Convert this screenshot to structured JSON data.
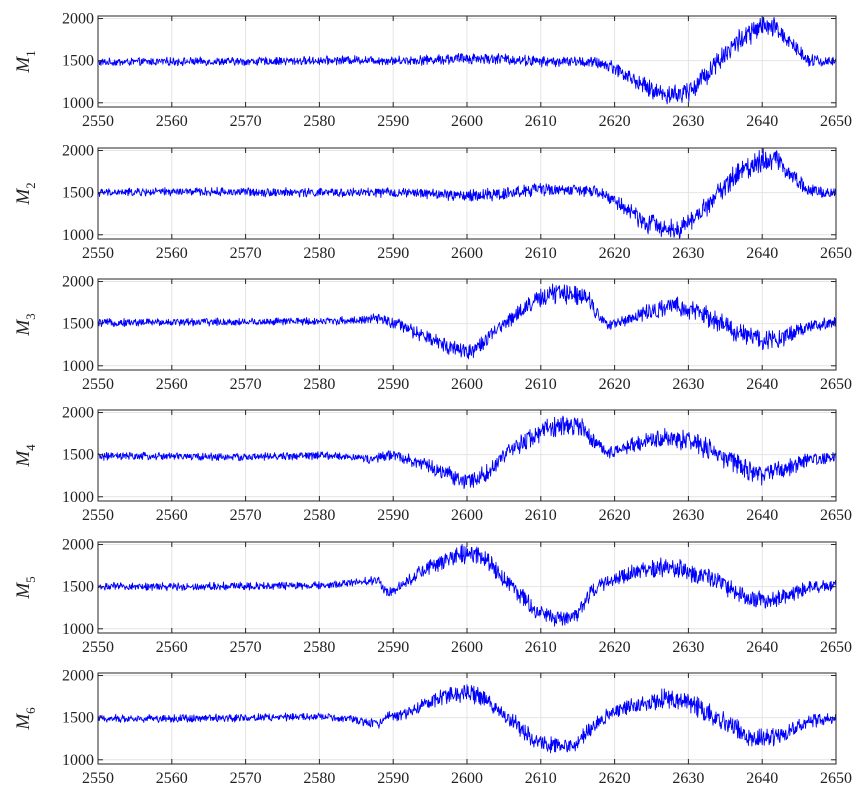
{
  "chart_data": [
    {
      "type": "line",
      "ylabel": "M",
      "ylabel_subscript": "1",
      "xlim": [
        2550,
        2650
      ],
      "ylim": [
        950,
        2030
      ],
      "xticks": [
        "2550",
        "2560",
        "2570",
        "2580",
        "2590",
        "2600",
        "2610",
        "2620",
        "2630",
        "2640",
        "2650"
      ],
      "yticks": [
        "1000",
        "1500",
        "2000"
      ],
      "grid": true,
      "series": [
        {
          "color": "#0000ff",
          "noise_amplitude": [
            [
              2550,
              40
            ],
            [
              2590,
              45
            ],
            [
              2600,
              60
            ],
            [
              2615,
              50
            ],
            [
              2620,
              70
            ],
            [
              2630,
              110
            ],
            [
              2640,
              120
            ],
            [
              2650,
              40
            ]
          ],
          "x": [
            2550,
            2560,
            2570,
            2580,
            2585,
            2590,
            2595,
            2600,
            2605,
            2610,
            2615,
            2618,
            2620,
            2622,
            2625,
            2627,
            2629,
            2631,
            2634,
            2637,
            2640,
            2642,
            2644,
            2646,
            2648,
            2650
          ],
          "y": [
            1480,
            1490,
            1490,
            1500,
            1510,
            1500,
            1510,
            1530,
            1520,
            1490,
            1490,
            1470,
            1420,
            1300,
            1150,
            1100,
            1100,
            1200,
            1500,
            1750,
            1900,
            1880,
            1700,
            1530,
            1490,
            1490
          ]
        }
      ]
    },
    {
      "type": "line",
      "ylabel": "M",
      "ylabel_subscript": "2",
      "xlim": [
        2550,
        2650
      ],
      "ylim": [
        950,
        2030
      ],
      "xticks": [
        "2550",
        "2560",
        "2570",
        "2580",
        "2590",
        "2600",
        "2610",
        "2620",
        "2630",
        "2640",
        "2650"
      ],
      "yticks": [
        "1000",
        "1500",
        "2000"
      ],
      "grid": true,
      "series": [
        {
          "color": "#0000ff",
          "noise_amplitude": [
            [
              2550,
              40
            ],
            [
              2595,
              50
            ],
            [
              2600,
              65
            ],
            [
              2610,
              70
            ],
            [
              2615,
              50
            ],
            [
              2625,
              100
            ],
            [
              2630,
              100
            ],
            [
              2640,
              120
            ],
            [
              2650,
              40
            ]
          ],
          "x": [
            2550,
            2560,
            2570,
            2580,
            2590,
            2595,
            2600,
            2605,
            2610,
            2615,
            2618,
            2621,
            2624,
            2627,
            2629,
            2631,
            2634,
            2637,
            2640,
            2642,
            2644,
            2646,
            2648,
            2650
          ],
          "y": [
            1500,
            1510,
            1510,
            1500,
            1500,
            1490,
            1460,
            1490,
            1540,
            1530,
            1500,
            1350,
            1150,
            1080,
            1080,
            1200,
            1500,
            1750,
            1900,
            1900,
            1700,
            1550,
            1510,
            1500
          ]
        }
      ]
    },
    {
      "type": "line",
      "ylabel": "M",
      "ylabel_subscript": "3",
      "xlim": [
        2550,
        2650
      ],
      "ylim": [
        950,
        2030
      ],
      "xticks": [
        "2550",
        "2560",
        "2570",
        "2580",
        "2590",
        "2600",
        "2610",
        "2620",
        "2630",
        "2640",
        "2650"
      ],
      "yticks": [
        "1000",
        "1500",
        "2000"
      ],
      "grid": true,
      "series": [
        {
          "color": "#0000ff",
          "noise_amplitude": [
            [
              2550,
              40
            ],
            [
              2585,
              40
            ],
            [
              2593,
              70
            ],
            [
              2600,
              90
            ],
            [
              2605,
              70
            ],
            [
              2612,
              110
            ],
            [
              2617,
              100
            ],
            [
              2618,
              50
            ],
            [
              2628,
              100
            ],
            [
              2640,
              110
            ],
            [
              2650,
              50
            ]
          ],
          "x": [
            2550,
            2560,
            2570,
            2580,
            2585,
            2588,
            2591,
            2594,
            2597,
            2600,
            2602,
            2605,
            2608,
            2610,
            2612,
            2616,
            2617.5,
            2619,
            2622,
            2625,
            2628,
            2631,
            2634,
            2637,
            2640,
            2643,
            2646,
            2650
          ],
          "y": [
            1510,
            1520,
            1520,
            1530,
            1540,
            1560,
            1480,
            1350,
            1250,
            1170,
            1250,
            1500,
            1700,
            1800,
            1860,
            1850,
            1650,
            1470,
            1560,
            1650,
            1700,
            1650,
            1520,
            1380,
            1300,
            1350,
            1460,
            1520
          ]
        }
      ]
    },
    {
      "type": "line",
      "ylabel": "M",
      "ylabel_subscript": "4",
      "xlim": [
        2550,
        2650
      ],
      "ylim": [
        950,
        2030
      ],
      "xticks": [
        "2550",
        "2560",
        "2570",
        "2580",
        "2590",
        "2600",
        "2610",
        "2620",
        "2630",
        "2640",
        "2650"
      ],
      "yticks": [
        "1000",
        "1500",
        "2000"
      ],
      "grid": true,
      "series": [
        {
          "color": "#0000ff",
          "noise_amplitude": [
            [
              2550,
              40
            ],
            [
              2585,
              40
            ],
            [
              2591,
              60
            ],
            [
              2600,
              90
            ],
            [
              2612,
              110
            ],
            [
              2617,
              100
            ],
            [
              2618,
              50
            ],
            [
              2627,
              100
            ],
            [
              2640,
              110
            ],
            [
              2650,
              50
            ]
          ],
          "x": [
            2550,
            2560,
            2570,
            2580,
            2585,
            2587,
            2590,
            2592,
            2595,
            2598,
            2600,
            2603,
            2606,
            2609,
            2612,
            2615,
            2617,
            2619,
            2622,
            2625,
            2628,
            2631,
            2634,
            2637,
            2640,
            2643,
            2646,
            2650
          ],
          "y": [
            1480,
            1480,
            1470,
            1490,
            1470,
            1440,
            1500,
            1450,
            1350,
            1250,
            1170,
            1300,
            1550,
            1730,
            1840,
            1860,
            1680,
            1520,
            1600,
            1680,
            1700,
            1640,
            1500,
            1360,
            1270,
            1320,
            1430,
            1480
          ]
        }
      ]
    },
    {
      "type": "line",
      "ylabel": "M",
      "ylabel_subscript": "5",
      "xlim": [
        2550,
        2650
      ],
      "ylim": [
        950,
        2030
      ],
      "xticks": [
        "2550",
        "2560",
        "2570",
        "2580",
        "2590",
        "2600",
        "2610",
        "2620",
        "2630",
        "2640",
        "2650"
      ],
      "yticks": [
        "1000",
        "1500",
        "2000"
      ],
      "grid": true,
      "series": [
        {
          "color": "#0000ff",
          "noise_amplitude": [
            [
              2550,
              40
            ],
            [
              2585,
              40
            ],
            [
              2592,
              60
            ],
            [
              2600,
              100
            ],
            [
              2610,
              90
            ],
            [
              2613,
              80
            ],
            [
              2620,
              70
            ],
            [
              2627,
              100
            ],
            [
              2640,
              100
            ],
            [
              2650,
              50
            ]
          ],
          "x": [
            2550,
            2560,
            2570,
            2580,
            2585,
            2588,
            2589,
            2591,
            2594,
            2597,
            2600,
            2603,
            2606,
            2609,
            2611,
            2613,
            2615,
            2617,
            2620,
            2624,
            2627,
            2630,
            2634,
            2637,
            2640,
            2643,
            2646,
            2650
          ],
          "y": [
            1500,
            1500,
            1510,
            1510,
            1550,
            1580,
            1430,
            1500,
            1700,
            1800,
            1900,
            1800,
            1500,
            1250,
            1140,
            1130,
            1180,
            1450,
            1600,
            1700,
            1730,
            1680,
            1550,
            1400,
            1330,
            1380,
            1480,
            1520
          ]
        }
      ]
    },
    {
      "type": "line",
      "ylabel": "M",
      "ylabel_subscript": "6",
      "xlim": [
        2550,
        2650
      ],
      "ylim": [
        950,
        2030
      ],
      "xticks": [
        "2550",
        "2560",
        "2570",
        "2580",
        "2590",
        "2600",
        "2610",
        "2620",
        "2630",
        "2640",
        "2650"
      ],
      "yticks": [
        "1000",
        "1500",
        "2000"
      ],
      "grid": true,
      "series": [
        {
          "color": "#0000ff",
          "noise_amplitude": [
            [
              2550,
              40
            ],
            [
              2585,
              40
            ],
            [
              2592,
              60
            ],
            [
              2600,
              100
            ],
            [
              2610,
              90
            ],
            [
              2613,
              80
            ],
            [
              2620,
              70
            ],
            [
              2627,
              110
            ],
            [
              2640,
              110
            ],
            [
              2650,
              50
            ]
          ],
          "x": [
            2550,
            2560,
            2570,
            2580,
            2584,
            2588,
            2589,
            2591,
            2594,
            2597,
            2600,
            2603,
            2606,
            2609,
            2611,
            2613,
            2615,
            2617,
            2620,
            2624,
            2627,
            2630,
            2634,
            2637,
            2640,
            2643,
            2646,
            2650
          ],
          "y": [
            1490,
            1490,
            1500,
            1510,
            1480,
            1420,
            1530,
            1520,
            1650,
            1760,
            1800,
            1700,
            1450,
            1250,
            1180,
            1160,
            1200,
            1400,
            1580,
            1670,
            1720,
            1680,
            1500,
            1320,
            1250,
            1300,
            1450,
            1490
          ]
        }
      ]
    }
  ]
}
